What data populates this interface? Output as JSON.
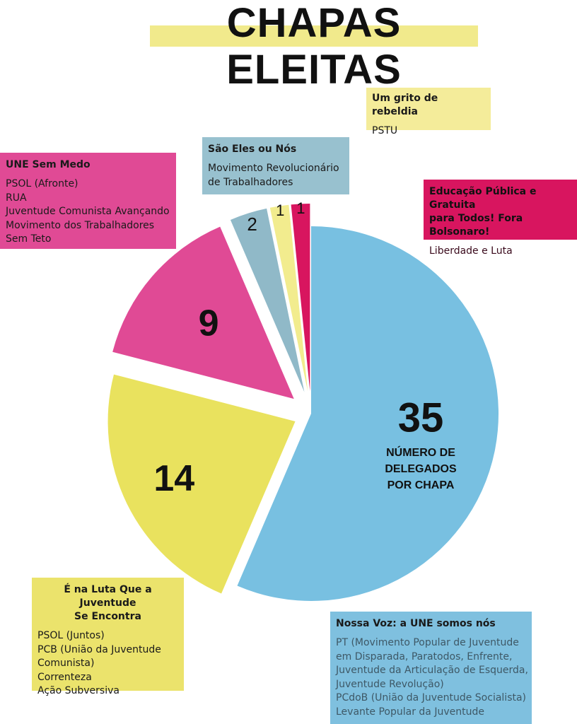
{
  "title": "CHAPAS ELEITAS",
  "colors": {
    "blue": "#78c0e1",
    "yellow": "#e9e25e",
    "magenta": "#e04a95",
    "grayblue": "#90b9c8",
    "paleyellow": "#f2ec8e",
    "crimson": "#d8155f",
    "title_highlight": "#f1ea8c"
  },
  "chart_data": {
    "type": "pie",
    "title": "CHAPAS ELEITAS",
    "center_label": "NÚMERO DE DELEGADOS POR CHAPA",
    "center_label_lines": [
      "NÚMERO DE",
      "DELEGADOS",
      "POR CHAPA"
    ],
    "slices": [
      {
        "name": "Nossa Voz: a UNE somos nós",
        "value": 35,
        "label": "35",
        "color": "#78c0e1"
      },
      {
        "name": "É na Luta Que a Juventude Se Encontra",
        "value": 14,
        "label": "14",
        "color": "#e9e25e"
      },
      {
        "name": "UNE Sem Medo",
        "value": 9,
        "label": "9",
        "color": "#e04a95"
      },
      {
        "name": "São Eles ou Nós",
        "value": 2,
        "label": "2",
        "color": "#90b9c8"
      },
      {
        "name": "Um grito de rebeldia",
        "value": 1,
        "label": "1",
        "color": "#f2ec8e"
      },
      {
        "name": "Educação Pública e Gratuita para Todos! Fora Bolsonaro!",
        "value": 1,
        "label": "1",
        "color": "#d8155f"
      }
    ]
  },
  "legend": {
    "une": {
      "title": "UNE Sem Medo",
      "lines": [
        "PSOL (Afronte)",
        "RUA",
        "Juventude Comunista Avançando",
        "Movimento dos Trabalhadores",
        "Sem Teto"
      ]
    },
    "sao": {
      "title": "São Eles ou Nós",
      "lines": [
        "Movimento Revolucionário",
        "de Trabalhadores"
      ]
    },
    "grito": {
      "title": "Um grito de rebeldia",
      "lines": [
        "PSTU"
      ]
    },
    "edu": {
      "title_lines": [
        "Educação Pública e Gratuita",
        "para Todos! Fora Bolsonaro!"
      ],
      "lines": [
        "Liberdade e Luta"
      ]
    },
    "luta": {
      "title_lines": [
        "É na Luta Que a Juventude",
        "Se Encontra"
      ],
      "lines": [
        "PSOL (Juntos)",
        "PCB (União da Juventude",
        "Comunista)",
        "Correnteza",
        "Ação Subversiva"
      ]
    },
    "voz": {
      "title": "Nossa Voz: a UNE somos nós",
      "lines": [
        "PT (Movimento Popular de Juventude",
        "em Disparada, Paratodos, Enfrente,",
        "Juventude da Articulação de Esquerda,",
        "Juventude Revolução)",
        "PCdoB (União da Juventude Socialista)",
        "Levante Popular da Juventude"
      ]
    }
  }
}
